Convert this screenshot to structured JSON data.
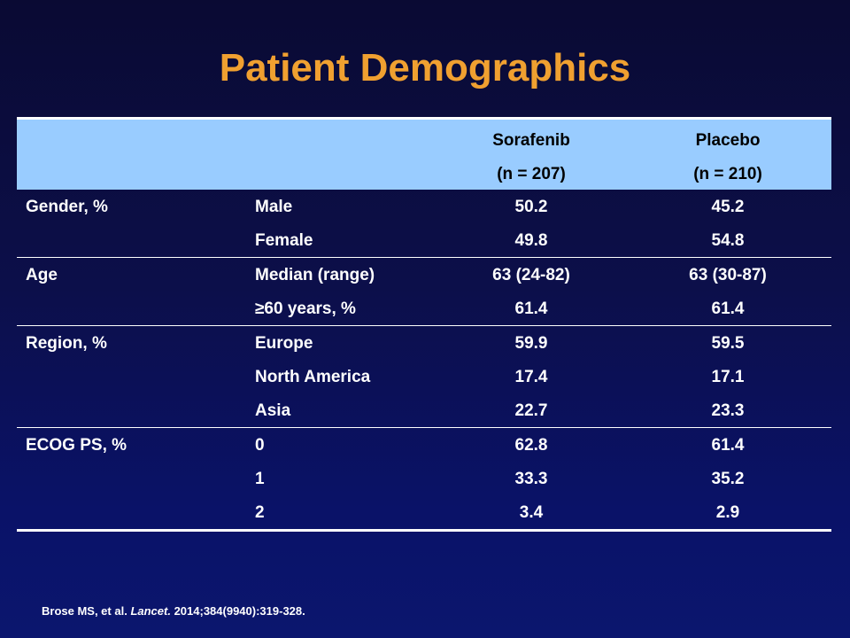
{
  "title": "Patient Demographics",
  "table": {
    "headers": {
      "sorafenib_line1": "Sorafenib",
      "sorafenib_line2": "(n = 207)",
      "placebo_line1": "Placebo",
      "placebo_line2": "(n = 210)"
    },
    "groups": [
      {
        "category": "Gender, %",
        "rows": [
          {
            "sub": "Male",
            "sorafenib": "50.2",
            "placebo": "45.2"
          },
          {
            "sub": "Female",
            "sorafenib": "49.8",
            "placebo": "54.8"
          }
        ]
      },
      {
        "category": "Age",
        "rows": [
          {
            "sub": "Median (range)",
            "sorafenib": "63 (24-82)",
            "placebo": "63 (30-87)"
          },
          {
            "sub": "≥60 years, %",
            "sorafenib": "61.4",
            "placebo": "61.4"
          }
        ]
      },
      {
        "category": "Region, %",
        "rows": [
          {
            "sub": "Europe",
            "sorafenib": "59.9",
            "placebo": "59.5"
          },
          {
            "sub": "North America",
            "sorafenib": "17.4",
            "placebo": "17.1"
          },
          {
            "sub": "Asia",
            "sorafenib": "22.7",
            "placebo": "23.3"
          }
        ]
      },
      {
        "category": "ECOG PS, %",
        "rows": [
          {
            "sub": "0",
            "sorafenib": "62.8",
            "placebo": "61.4"
          },
          {
            "sub": "1",
            "sorafenib": "33.3",
            "placebo": "35.2"
          },
          {
            "sub": "2",
            "sorafenib": "3.4",
            "placebo": "2.9"
          }
        ]
      }
    ]
  },
  "citation": {
    "authors": "Brose MS, et al.",
    "journal": "Lancet.",
    "details": "2014;384(9940):319-328."
  },
  "colors": {
    "title": "#f0a030",
    "header_band": "#99ccff",
    "background_top": "#0a0a33",
    "background_bottom": "#0b166e"
  }
}
